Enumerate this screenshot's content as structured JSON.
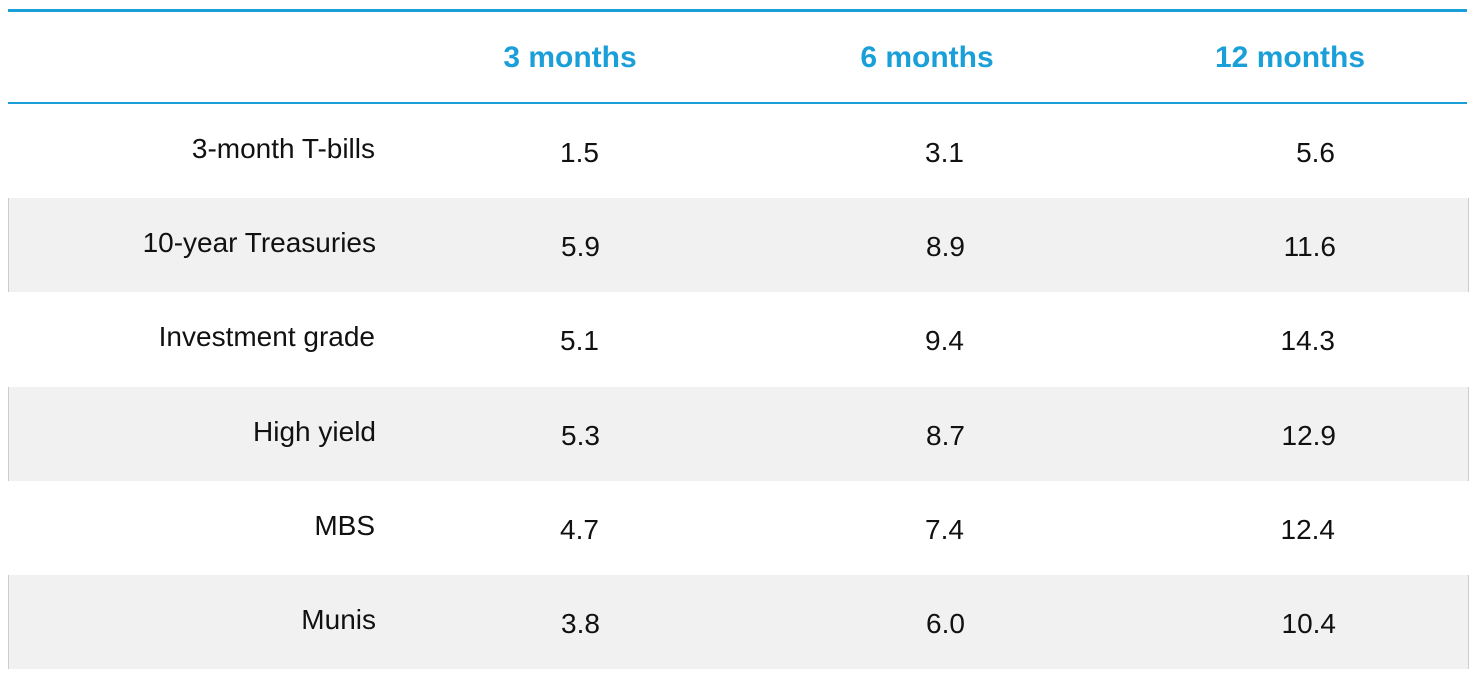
{
  "table": {
    "header": [
      "3 months",
      "6 months",
      "12 months"
    ],
    "rows": [
      [
        "3-month T-bills",
        "1.5",
        "3.1",
        "5.6"
      ],
      [
        "10-year Treasuries",
        "5.9",
        "8.9",
        "11.6"
      ],
      [
        "Investment grade",
        "5.1",
        "9.4",
        "14.3"
      ],
      [
        "High yield",
        "5.3",
        "8.7",
        "12.9"
      ],
      [
        "MBS",
        "4.7",
        "7.4",
        "12.4"
      ],
      [
        "Munis",
        "3.8",
        "6.0",
        "10.4"
      ]
    ]
  }
}
